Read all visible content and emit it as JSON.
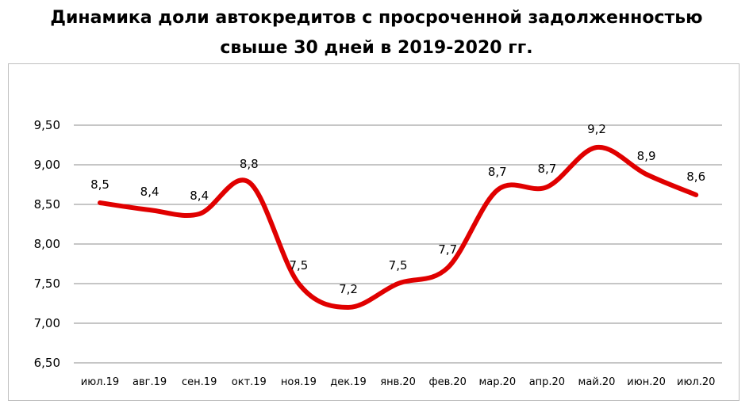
{
  "title_line1": "Динамика доли автокредитов с просроченной задолженностью",
  "title_line2": "свыше 30 дней в 2019-2020 гг.",
  "chart_data": {
    "type": "line",
    "categories": [
      "июл.19",
      "авг.19",
      "сен.19",
      "окт.19",
      "ноя.19",
      "дек.19",
      "янв.20",
      "фев.20",
      "мар.20",
      "апр.20",
      "май.20",
      "июн.20",
      "июл.20"
    ],
    "series": [
      {
        "values": [
          8.52,
          8.43,
          8.38,
          8.78,
          7.5,
          7.2,
          7.5,
          7.7,
          8.68,
          8.72,
          9.22,
          8.88,
          8.62
        ],
        "labels": [
          "8,5",
          "8,4",
          "8,4",
          "8,8",
          "7,5",
          "7,2",
          "7,5",
          "7,7",
          "8,7",
          "8,7",
          "9,2",
          "8,9",
          "8,6"
        ],
        "color": "#e00000"
      }
    ],
    "yticks": [
      "9,50",
      "9,00",
      "8,50",
      "8,00",
      "7,50",
      "7,00",
      "6,50"
    ],
    "ylim": [
      6.5,
      9.5
    ],
    "grid": true,
    "legend": "none"
  }
}
